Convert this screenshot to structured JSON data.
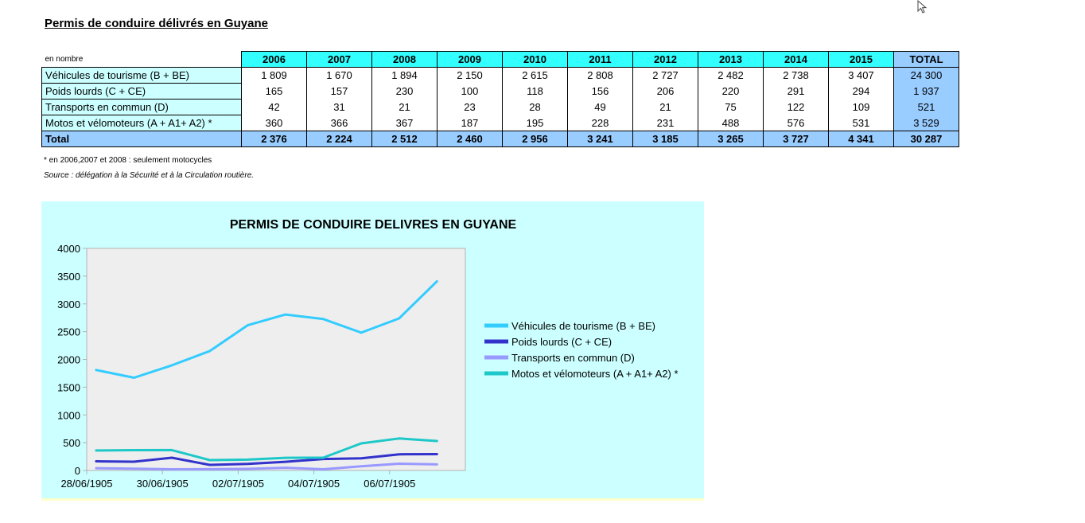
{
  "page": {
    "title": "Permis de conduire délivrés en Guyane",
    "unit_label": "en nombre",
    "note": "* en 2006,2007 et 2008 : seulement motocycles",
    "source": "Source : délégation à la Sécurité et à la Circulation routière."
  },
  "table": {
    "years": [
      "2006",
      "2007",
      "2008",
      "2009",
      "2010",
      "2011",
      "2012",
      "2013",
      "2014",
      "2015"
    ],
    "total_header": "TOTAL",
    "rows": [
      {
        "label": "Véhicules de tourisme (B + BE)",
        "values": [
          "1 809",
          "1 670",
          "1 894",
          "2 150",
          "2 615",
          "2 808",
          "2 727",
          "2 482",
          "2 738",
          "3 407"
        ],
        "total": "24 300"
      },
      {
        "label": "Poids lourds (C + CE)",
        "values": [
          "165",
          "157",
          "230",
          "100",
          "118",
          "156",
          "206",
          "220",
          "291",
          "294"
        ],
        "total": "1 937"
      },
      {
        "label": "Transports en commun (D)",
        "values": [
          "42",
          "31",
          "21",
          "23",
          "28",
          "49",
          "21",
          "75",
          "122",
          "109"
        ],
        "total": "521"
      },
      {
        "label": "Motos et vélomoteurs (A + A1+ A2) *",
        "values": [
          "360",
          "366",
          "367",
          "187",
          "195",
          "228",
          "231",
          "488",
          "576",
          "531"
        ],
        "total": "3 529"
      }
    ],
    "sum_row": {
      "label": "Total",
      "values": [
        "2 376",
        "2 224",
        "2 512",
        "2 460",
        "2 956",
        "3 241",
        "3 185",
        "3 265",
        "3 727",
        "4 341"
      ],
      "total": "30 287"
    }
  },
  "chart_data": {
    "type": "line",
    "title": "PERMIS DE CONDUIRE DELIVRES EN GUYANE",
    "xlabel": "",
    "ylabel": "",
    "x": [
      0,
      1,
      2,
      3,
      4,
      5,
      6,
      7,
      8,
      9
    ],
    "x_tick_labels": [
      "28/06/1905",
      "30/06/1905",
      "02/07/1905",
      "04/07/1905",
      "06/07/1905"
    ],
    "x_tick_positions": [
      -0.25,
      1.75,
      3.75,
      5.75,
      7.75
    ],
    "x_range": [
      -0.25,
      9.75
    ],
    "ylim": [
      0,
      4000
    ],
    "y_ticks": [
      0,
      500,
      1000,
      1500,
      2000,
      2500,
      3000,
      3500,
      4000
    ],
    "grid": false,
    "plot_background": "#eeeeee",
    "legend_position": "right",
    "series": [
      {
        "name": "Véhicules de tourisme (B + BE)",
        "color": "#33ccff",
        "values": [
          1809,
          1670,
          1894,
          2150,
          2615,
          2808,
          2727,
          2482,
          2738,
          3407
        ]
      },
      {
        "name": "Poids lourds (C + CE)",
        "color": "#3333cc",
        "values": [
          165,
          157,
          230,
          100,
          118,
          156,
          206,
          220,
          291,
          294
        ]
      },
      {
        "name": "Transports en commun (D)",
        "color": "#9999ff",
        "values": [
          42,
          31,
          21,
          23,
          28,
          49,
          21,
          75,
          122,
          109
        ]
      },
      {
        "name": "Motos et vélomoteurs (A + A1+ A2) *",
        "color": "#1ec8c8",
        "values": [
          360,
          366,
          367,
          187,
          195,
          228,
          231,
          488,
          576,
          531
        ]
      }
    ]
  }
}
